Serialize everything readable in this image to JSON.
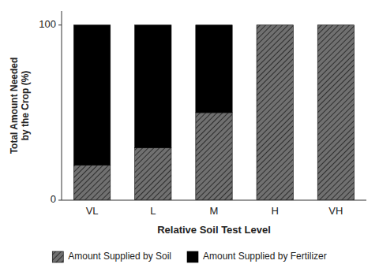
{
  "chart_data": {
    "type": "bar",
    "stacked": true,
    "categories": [
      "VL",
      "L",
      "M",
      "H",
      "VH"
    ],
    "series": [
      {
        "name": "Amount Supplied by Soil",
        "color": "#707070",
        "values": [
          20,
          30,
          50,
          100,
          100
        ]
      },
      {
        "name": "Amount Supplied by Fertilizer",
        "color": "#000000",
        "values": [
          80,
          70,
          50,
          0,
          0
        ]
      }
    ],
    "xlabel": "Relative Soil Test Level",
    "ylabel": "Total Amount Needed\nby the Crop (%)",
    "ylim": [
      0,
      108
    ],
    "yticks": [
      0,
      100
    ],
    "grid": false,
    "legend": "bottom"
  }
}
